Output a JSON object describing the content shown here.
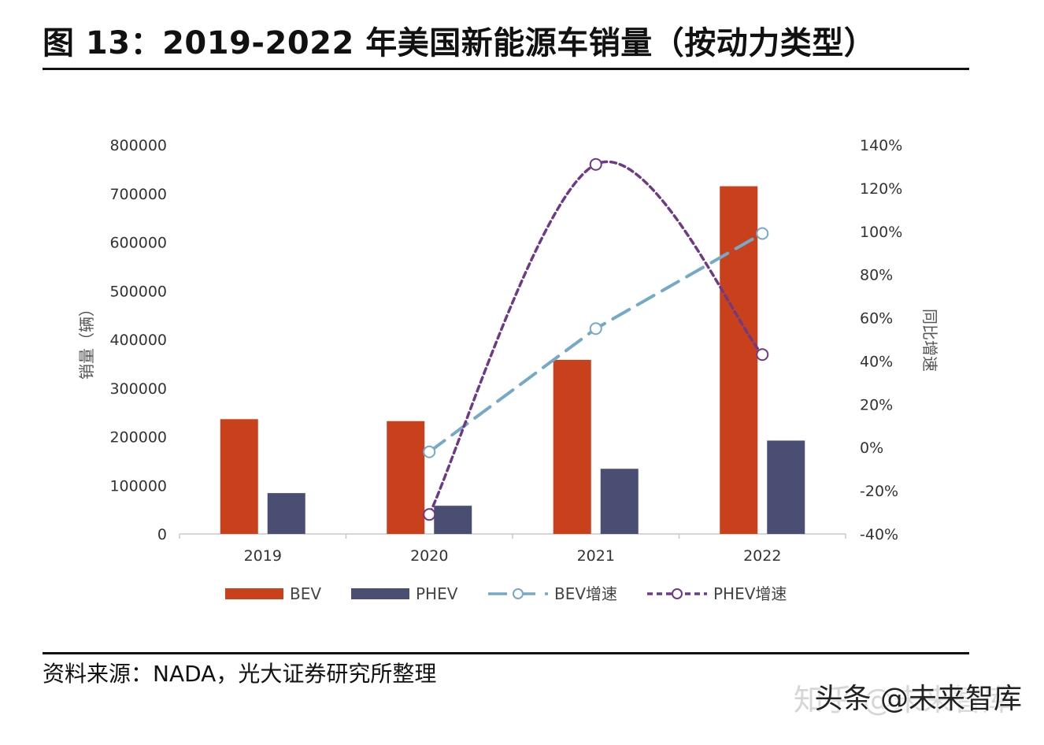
{
  "figure": {
    "title": "图 13：2019-2022 年美国新能源车销量（按动力类型）",
    "source": "资料来源：NADA，光大证券研究所整理",
    "watermark_bottom": "知乎 @未来智库",
    "watermark_top": "头条 @未来智库"
  },
  "chart_data": {
    "type": "bar",
    "categories": [
      "2019",
      "2020",
      "2021",
      "2022"
    ],
    "ylabel": "销量（辆）",
    "y2label": "同比增速",
    "ylim": [
      0,
      800000
    ],
    "yticks": [
      "800000",
      "700000",
      "600000",
      "500000",
      "400000",
      "300000",
      "200000",
      "100000",
      "0"
    ],
    "y2lim": [
      -40,
      140
    ],
    "y2ticks": [
      "140%",
      "120%",
      "100%",
      "80%",
      "60%",
      "40%",
      "20%",
      "0%",
      "-20%",
      "-40%"
    ],
    "series": [
      {
        "name": "BEV",
        "kind": "bar",
        "axis": "left",
        "color": "#c8411c",
        "values": [
          236000,
          232000,
          358000,
          715000
        ]
      },
      {
        "name": "PHEV",
        "kind": "bar",
        "axis": "left",
        "color": "#4a4e73",
        "values": [
          84000,
          58000,
          134000,
          192000
        ]
      },
      {
        "name": "BEV增速",
        "kind": "line",
        "axis": "right",
        "style": "dashed",
        "color": "#74a9c7",
        "values": [
          null,
          -2,
          55,
          99
        ]
      },
      {
        "name": "PHEV增速",
        "kind": "line",
        "axis": "right",
        "style": "dotted",
        "color": "#6e3a85",
        "values": [
          null,
          -31,
          131,
          43
        ]
      }
    ],
    "legend": [
      "BEV",
      "PHEV",
      "BEV增速",
      "PHEV增速"
    ],
    "legend_position": "bottom"
  }
}
